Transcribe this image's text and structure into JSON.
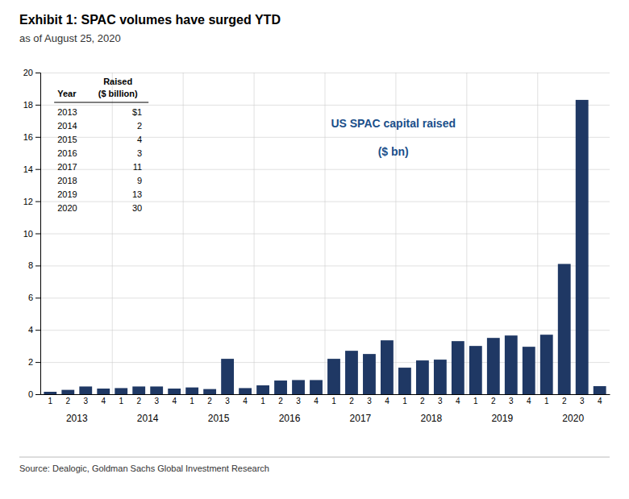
{
  "chart_data": {
    "type": "bar",
    "title": "Exhibit 1: SPAC volumes have surged YTD",
    "subtitle": "as of August 25, 2020",
    "source": "Source: Dealogic, Goldman Sachs Global Investment Research",
    "annotations": [
      "US SPAC capital raised",
      "($ bn)"
    ],
    "categories": [
      "1",
      "2",
      "3",
      "4",
      "1",
      "2",
      "3",
      "4",
      "1",
      "2",
      "3",
      "4",
      "1",
      "2",
      "3",
      "4",
      "1",
      "2",
      "3",
      "4",
      "1",
      "2",
      "3",
      "4",
      "1",
      "2",
      "3",
      "4",
      "1",
      "2",
      "3",
      "4"
    ],
    "year_labels": [
      "2013",
      "2014",
      "2015",
      "2016",
      "2017",
      "2018",
      "2019",
      "2020"
    ],
    "values": [
      0.15,
      0.27,
      0.48,
      0.35,
      0.38,
      0.48,
      0.48,
      0.35,
      0.42,
      0.32,
      2.2,
      0.38,
      0.55,
      0.85,
      0.88,
      0.88,
      2.2,
      2.7,
      2.5,
      3.35,
      1.65,
      2.1,
      2.15,
      3.3,
      3.0,
      3.5,
      3.65,
      2.95,
      3.7,
      8.1,
      18.3,
      0.5
    ],
    "color": "#1f3864",
    "ylim": [
      0,
      20
    ],
    "yticks": [
      0,
      2,
      4,
      6,
      8,
      10,
      12,
      14,
      16,
      18,
      20
    ],
    "grid": true,
    "table": {
      "title": "Raised",
      "columns": [
        "Year",
        "($ billion)"
      ],
      "rows": [
        [
          "2013",
          "$1"
        ],
        [
          "2014",
          "2"
        ],
        [
          "2015",
          "4"
        ],
        [
          "2016",
          "3"
        ],
        [
          "2017",
          "11"
        ],
        [
          "2018",
          "9"
        ],
        [
          "2019",
          "13"
        ],
        [
          "2020",
          "30"
        ]
      ]
    }
  }
}
